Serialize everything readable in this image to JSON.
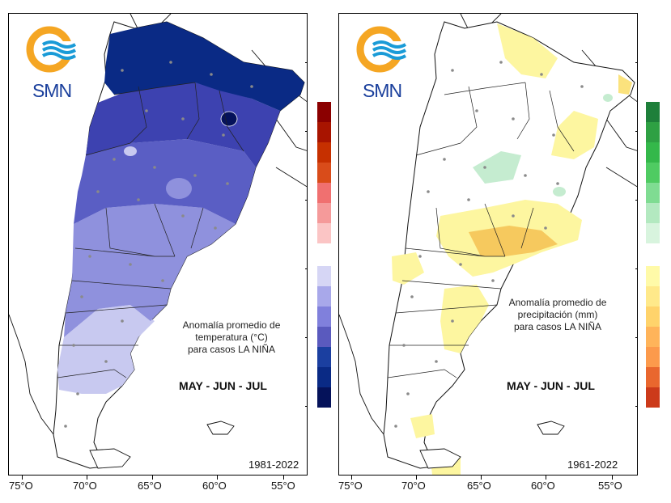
{
  "logo": {
    "text": "SMN",
    "ring_color": "#f5a623",
    "wave_color": "#1a9bd7"
  },
  "panels": [
    {
      "id": "temperature",
      "title_lines": [
        "Anomalía promedio de",
        "temperatura (°C)",
        "para casos LA NIÑA"
      ],
      "months": "MAY - JUN - JUL",
      "period": "1981-2022",
      "legend_colors": [
        "#8b0000",
        "#a81400",
        "#c63000",
        "#d94c1a",
        "#f07070",
        "#f59a9a",
        "#fbc5c5",
        "#ffffff",
        "#d6d6f5",
        "#a8a8ea",
        "#8080dc",
        "#5a5abe",
        "#1b3fa0",
        "#0a2a85",
        "#05125a"
      ],
      "legend_top": 126
    },
    {
      "id": "precipitation",
      "title_lines": [
        "Anomalía promedio de",
        "precipitación (mm)",
        "para casos LA NIÑA"
      ],
      "months": "MAY - JUN - JUL",
      "period": "1961-2022",
      "legend_colors": [
        "#1e7f3a",
        "#2ea043",
        "#34b84a",
        "#4fcb62",
        "#7fdc92",
        "#b3e9c0",
        "#d8f4de",
        "#ffffff",
        "#fffaa8",
        "#ffe98a",
        "#ffd36b",
        "#ffb45a",
        "#fc9a4c",
        "#e9672e",
        "#cc3a1a"
      ],
      "legend_top": 126
    }
  ],
  "x_axis_labels": [
    "75°O",
    "70°O",
    "65°O",
    "60°O",
    "55°O"
  ],
  "map_colors": {
    "temp_very_dark": "#05125a",
    "temp_dark": "#0a2a85",
    "temp_mid_dark": "#3d42b0",
    "temp_mid": "#5a5ec4",
    "temp_light": "#8f91dd",
    "temp_very_light": "#c8c9f0",
    "precip_yellow_light": "#fdf6a0",
    "precip_yellow": "#fbe27d",
    "precip_orange": "#f6c95e",
    "precip_green": "#c5ecd0",
    "station_marker": "#8a8a8a",
    "border_line": "#111111"
  }
}
